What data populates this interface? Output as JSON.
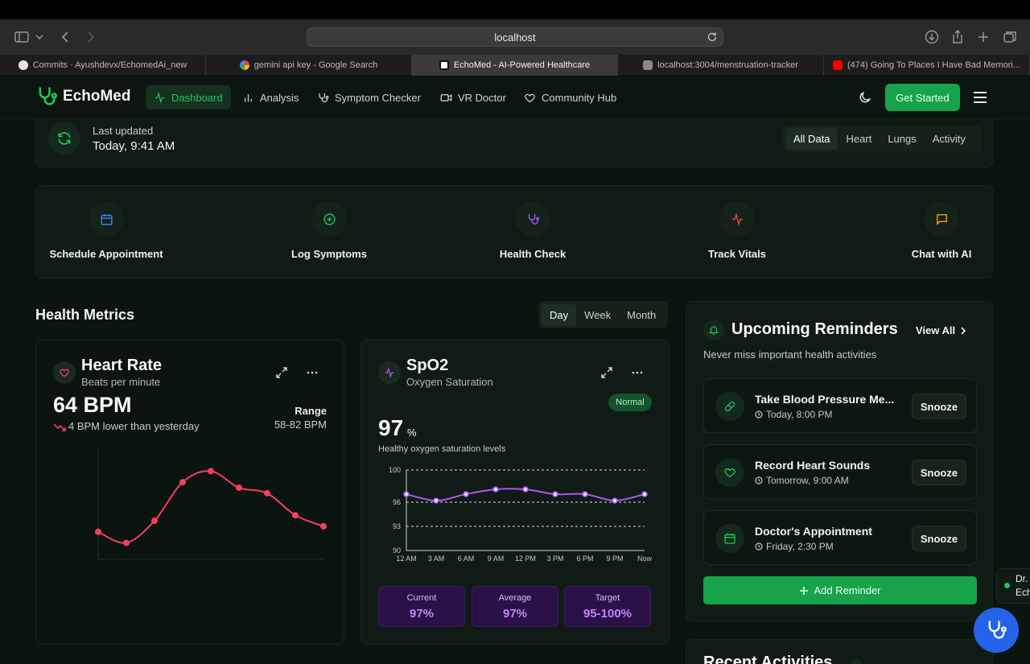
{
  "browser": {
    "url": "localhost",
    "tabs": [
      {
        "label": "Commits · Ayushdevx/EchomedAi_new",
        "icon": "github-icon"
      },
      {
        "label": "gemini api key - Google Search",
        "icon": "google-icon"
      },
      {
        "label": "EchoMed - AI-Powered Healthcare",
        "icon": "echomed-icon"
      },
      {
        "label": "localhost:3004/menstruation-tracker",
        "icon": "l-letter-icon"
      },
      {
        "label": "(474) Going To Places I Have Bad Memori...",
        "icon": "youtube-icon"
      }
    ]
  },
  "nav": {
    "brand": "EchoMed",
    "links": [
      {
        "label": "Dashboard",
        "icon": "activity-icon"
      },
      {
        "label": "Analysis",
        "icon": "bar-chart-icon"
      },
      {
        "label": "Symptom Checker",
        "icon": "stethoscope-icon"
      },
      {
        "label": "VR Doctor",
        "icon": "video-icon"
      },
      {
        "label": "Community Hub",
        "icon": "heart-icon"
      }
    ],
    "cta": "Get Started"
  },
  "status": {
    "last_updated_label": "Last updated",
    "last_updated_value": "Today, 9:41 AM",
    "filters": [
      "All Data",
      "Heart",
      "Lungs",
      "Activity"
    ]
  },
  "quick_actions": [
    {
      "label": "Schedule Appointment",
      "icon": "calendar-icon",
      "color": "#3b82f6"
    },
    {
      "label": "Log Symptoms",
      "icon": "plus-circle-icon",
      "color": "#22c55e"
    },
    {
      "label": "Health Check",
      "icon": "stethoscope-icon",
      "color": "#a855f7"
    },
    {
      "label": "Track Vitals",
      "icon": "activity-icon",
      "color": "#ef4444"
    },
    {
      "label": "Chat with AI",
      "icon": "message-square-icon",
      "color": "#f59e0b"
    }
  ],
  "health_metrics": {
    "title": "Health Metrics",
    "ranges": [
      "Day",
      "Week",
      "Month"
    ]
  },
  "heart_rate": {
    "title": "Heart Rate",
    "subtitle": "Beats per minute",
    "value": "64 BPM",
    "trend": "4 BPM lower than yesterday",
    "range_label": "Range",
    "range_value": "58-82 BPM"
  },
  "spo2": {
    "title": "SpO2",
    "subtitle": "Oxygen Saturation",
    "badge": "Normal",
    "value": "97",
    "unit": "%",
    "description": "Healthy oxygen saturation levels",
    "stats": [
      {
        "label": "Current",
        "value": "97%"
      },
      {
        "label": "Average",
        "value": "97%"
      },
      {
        "label": "Target",
        "value": "95-100%"
      }
    ]
  },
  "chart_data": [
    {
      "type": "line",
      "name": "heart-rate",
      "x": [
        "",
        "",
        "",
        "",
        "",
        "",
        "",
        "",
        ""
      ],
      "values": [
        65,
        63,
        67,
        74,
        76,
        73,
        72,
        68,
        66
      ],
      "ylim": [
        60,
        80
      ],
      "color": "#f43f5e"
    },
    {
      "type": "line",
      "name": "spo2",
      "x": [
        "12 AM",
        "3 AM",
        "6 AM",
        "9 AM",
        "12 PM",
        "3 PM",
        "6 PM",
        "9 PM",
        "Now"
      ],
      "values": [
        97,
        96.2,
        97,
        97.6,
        97.6,
        97,
        97,
        96.2,
        97
      ],
      "yticks": [
        100,
        96,
        93,
        90
      ],
      "ylim": [
        90,
        100
      ],
      "color": "#a855f7"
    }
  ],
  "reminders": {
    "title": "Upcoming Reminders",
    "view_all": "View All",
    "subtitle": "Never miss important health activities",
    "items": [
      {
        "name": "Take Blood Pressure Me...",
        "time": "Today, 8:00 PM",
        "icon": "pill-icon",
        "action": "Snooze"
      },
      {
        "name": "Record Heart Sounds",
        "time": "Tomorrow, 9:00 AM",
        "icon": "heart-icon",
        "action": "Snooze"
      },
      {
        "name": "Doctor's Appointment",
        "time": "Friday, 2:30 PM",
        "icon": "calendar-icon",
        "action": "Snooze"
      }
    ],
    "add_label": "Add Reminder"
  },
  "recent": {
    "title": "Recent Activities"
  },
  "assistant": {
    "line1": "Dr.",
    "line2": "Ech"
  },
  "colors": {
    "accent": "#22c55e",
    "button": "#16a34a",
    "purple": "#a855f7",
    "heart": "#f43f5e"
  }
}
